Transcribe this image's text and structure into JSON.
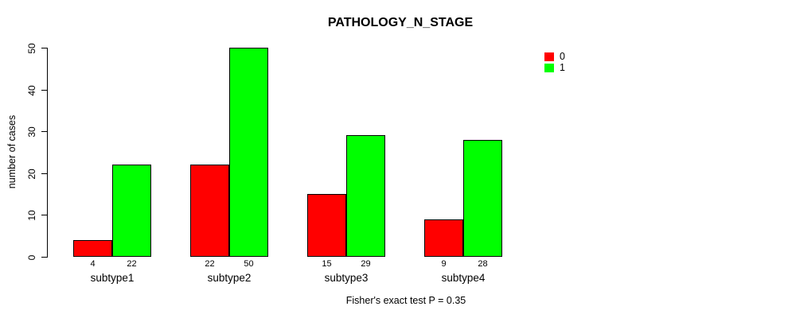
{
  "chart_data": {
    "type": "bar",
    "title": "PATHOLOGY_N_STAGE",
    "xlabel": "",
    "ylabel": "number of cases",
    "categories": [
      "subtype1",
      "subtype2",
      "subtype3",
      "subtype4"
    ],
    "series": [
      {
        "name": "0",
        "color": "#ff0000",
        "values": [
          4,
          22,
          15,
          9
        ]
      },
      {
        "name": "1",
        "color": "#00ff00",
        "values": [
          22,
          50,
          29,
          28
        ]
      }
    ],
    "bar_value_labels": {
      "subtype1": [
        4,
        22
      ],
      "subtype2": [
        22,
        50
      ],
      "subtype3": [
        15,
        29
      ],
      "subtype4": [
        9,
        28
      ]
    },
    "yticks": [
      0,
      10,
      20,
      30,
      40,
      50
    ],
    "ylim": [
      0,
      50
    ],
    "grid": false,
    "legend_position": "top-right",
    "annotation": "Fisher's exact test P = 0.35",
    "colors": {
      "background": "#ffffff",
      "axis": "#000000",
      "text": "#000000",
      "series0": "#ff0000",
      "series1": "#00ff00"
    }
  }
}
